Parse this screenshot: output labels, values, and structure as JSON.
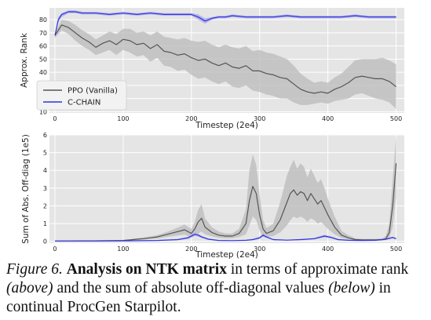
{
  "chart_data": [
    {
      "type": "line",
      "xlabel": "Timestep (2e4)",
      "ylabel": "Approx. Rank",
      "xlim": [
        -8,
        512
      ],
      "ylim": [
        9,
        89
      ],
      "xticks": [
        0,
        100,
        200,
        300,
        400,
        500
      ],
      "yticks": [
        10,
        20,
        30,
        40,
        50,
        60,
        70,
        80
      ],
      "grid": true,
      "legend_position": "lower-left",
      "series": [
        {
          "name": "PPO (Vanilla)",
          "color": "#555555",
          "band_color": "#b9b9b9",
          "x": [
            0,
            5,
            10,
            20,
            30,
            40,
            50,
            60,
            70,
            80,
            90,
            100,
            110,
            120,
            130,
            140,
            150,
            160,
            170,
            180,
            190,
            200,
            210,
            220,
            230,
            240,
            250,
            260,
            270,
            280,
            290,
            300,
            310,
            320,
            330,
            340,
            350,
            360,
            370,
            380,
            390,
            400,
            410,
            420,
            430,
            440,
            450,
            460,
            470,
            480,
            490,
            500
          ],
          "y": [
            68,
            72,
            76,
            74,
            70,
            66,
            63,
            59,
            62,
            64,
            61,
            65,
            64,
            61,
            62,
            58,
            61,
            56,
            55,
            53,
            54,
            51,
            49,
            50,
            47,
            45,
            47,
            44,
            43,
            45,
            41,
            41,
            39,
            38,
            36,
            35,
            31,
            27,
            25,
            24,
            25,
            24,
            27,
            29,
            32,
            36,
            37,
            36,
            35,
            35,
            33,
            29
          ],
          "band_low": [
            66,
            69,
            72,
            69,
            64,
            60,
            57,
            53,
            55,
            57,
            53,
            57,
            55,
            52,
            53,
            48,
            51,
            45,
            44,
            41,
            42,
            38,
            35,
            36,
            33,
            31,
            33,
            29,
            28,
            30,
            26,
            25,
            23,
            22,
            20,
            20,
            17,
            15,
            15,
            16,
            17,
            16,
            18,
            19,
            20,
            23,
            24,
            22,
            20,
            19,
            17,
            12
          ],
          "band_high": [
            70,
            75,
            80,
            79,
            76,
            72,
            69,
            65,
            68,
            71,
            69,
            73,
            73,
            70,
            71,
            68,
            71,
            67,
            66,
            65,
            66,
            64,
            63,
            64,
            61,
            59,
            61,
            59,
            58,
            60,
            56,
            57,
            55,
            54,
            52,
            50,
            45,
            39,
            35,
            32,
            33,
            32,
            36,
            39,
            44,
            49,
            50,
            50,
            50,
            51,
            49,
            46
          ]
        },
        {
          "name": "C-CHAIN",
          "color": "#3333dd",
          "band_color": "#a9a9ee",
          "x": [
            0,
            5,
            10,
            20,
            30,
            40,
            60,
            80,
            100,
            120,
            140,
            160,
            180,
            200,
            210,
            220,
            230,
            240,
            250,
            260,
            280,
            300,
            320,
            340,
            360,
            380,
            400,
            420,
            440,
            460,
            480,
            500
          ],
          "y": [
            68,
            80,
            84,
            86,
            86,
            85,
            85,
            84,
            85,
            84,
            85,
            84,
            84,
            84,
            82,
            79,
            81,
            82,
            82,
            83,
            82,
            82,
            82,
            83,
            82,
            82,
            82,
            82,
            83,
            82,
            82,
            82
          ],
          "band_low": [
            67,
            78,
            82,
            85,
            85,
            84,
            84,
            83,
            84,
            83,
            84,
            83,
            83,
            83,
            80,
            77,
            80,
            81,
            81,
            82,
            81,
            81,
            81,
            82,
            81,
            81,
            81,
            81,
            82,
            81,
            81,
            81
          ],
          "band_high": [
            69,
            82,
            85,
            87,
            87,
            86,
            86,
            85,
            86,
            85,
            86,
            85,
            85,
            85,
            84,
            81,
            82,
            83,
            83,
            84,
            83,
            83,
            83,
            84,
            83,
            83,
            83,
            83,
            84,
            83,
            83,
            83
          ]
        }
      ]
    },
    {
      "type": "line",
      "xlabel": "Timestep (2e4)",
      "ylabel": "Sum of Abs. Off-diag (1e5)",
      "xlim": [
        -8,
        512
      ],
      "ylim": [
        -0.1,
        6.0
      ],
      "xticks": [
        0,
        100,
        200,
        300,
        400,
        500
      ],
      "yticks": [
        0,
        1,
        2,
        3,
        4,
        5,
        6
      ],
      "grid": true,
      "series": [
        {
          "name": "PPO (Vanilla)",
          "color": "#555555",
          "band_color": "#b9b9b9",
          "x": [
            0,
            20,
            40,
            60,
            80,
            100,
            110,
            120,
            130,
            140,
            150,
            160,
            170,
            180,
            190,
            195,
            200,
            205,
            210,
            215,
            220,
            230,
            240,
            250,
            260,
            270,
            280,
            285,
            290,
            295,
            300,
            305,
            310,
            320,
            330,
            340,
            345,
            350,
            355,
            360,
            365,
            370,
            375,
            380,
            385,
            390,
            395,
            400,
            410,
            420,
            430,
            440,
            450,
            460,
            470,
            480,
            485,
            490,
            495,
            500
          ],
          "y": [
            0.02,
            0.02,
            0.03,
            0.03,
            0.04,
            0.05,
            0.08,
            0.12,
            0.15,
            0.2,
            0.25,
            0.35,
            0.45,
            0.55,
            0.65,
            0.55,
            0.45,
            0.7,
            1.1,
            1.3,
            0.8,
            0.5,
            0.35,
            0.3,
            0.3,
            0.45,
            1.0,
            2.3,
            3.1,
            2.7,
            1.5,
            0.7,
            0.45,
            0.6,
            1.2,
            2.2,
            2.7,
            2.9,
            2.6,
            2.8,
            2.7,
            2.3,
            2.7,
            2.4,
            2.1,
            2.3,
            1.9,
            1.5,
            0.8,
            0.35,
            0.2,
            0.1,
            0.08,
            0.08,
            0.08,
            0.1,
            0.15,
            0.5,
            2.0,
            4.4
          ],
          "band_low": [
            0.01,
            0.01,
            0.02,
            0.02,
            0.02,
            0.03,
            0.05,
            0.08,
            0.1,
            0.13,
            0.16,
            0.22,
            0.28,
            0.33,
            0.38,
            0.3,
            0.25,
            0.35,
            0.45,
            0.55,
            0.4,
            0.28,
            0.2,
            0.18,
            0.18,
            0.25,
            0.4,
            0.9,
            1.4,
            1.2,
            0.6,
            0.3,
            0.25,
            0.3,
            0.5,
            0.9,
            1.2,
            1.4,
            1.3,
            1.4,
            1.3,
            1.1,
            1.3,
            1.2,
            1.0,
            1.1,
            0.9,
            0.7,
            0.4,
            0.2,
            0.1,
            0.05,
            0.04,
            0.04,
            0.04,
            0.05,
            0.08,
            0.2,
            0.8,
            2.5
          ],
          "band_high": [
            0.03,
            0.03,
            0.04,
            0.04,
            0.06,
            0.08,
            0.12,
            0.17,
            0.22,
            0.28,
            0.35,
            0.48,
            0.62,
            0.78,
            0.95,
            0.82,
            0.7,
            1.1,
            1.8,
            2.1,
            1.3,
            0.8,
            0.55,
            0.45,
            0.45,
            0.7,
            1.8,
            4.0,
            4.9,
            4.3,
            2.6,
            1.2,
            0.75,
            1.0,
            2.2,
            3.7,
            4.2,
            4.6,
            4.1,
            4.4,
            4.2,
            3.6,
            4.1,
            3.7,
            3.3,
            3.5,
            3.0,
            2.4,
            1.4,
            0.6,
            0.35,
            0.18,
            0.14,
            0.14,
            0.14,
            0.18,
            0.3,
            1.0,
            3.5,
            6.0
          ]
        },
        {
          "name": "C-CHAIN",
          "color": "#3333dd",
          "band_color": "#a9a9ee",
          "x": [
            0,
            50,
            100,
            150,
            180,
            195,
            205,
            210,
            215,
            225,
            240,
            260,
            280,
            290,
            300,
            305,
            310,
            320,
            340,
            360,
            380,
            395,
            405,
            415,
            430,
            450,
            470,
            485,
            495,
            500
          ],
          "y": [
            0.02,
            0.02,
            0.03,
            0.05,
            0.1,
            0.2,
            0.4,
            0.35,
            0.25,
            0.12,
            0.05,
            0.04,
            0.06,
            0.1,
            0.2,
            0.35,
            0.25,
            0.1,
            0.07,
            0.1,
            0.15,
            0.3,
            0.22,
            0.1,
            0.06,
            0.05,
            0.06,
            0.12,
            0.22,
            0.15
          ],
          "band_low": [
            0.01,
            0.01,
            0.02,
            0.03,
            0.07,
            0.14,
            0.3,
            0.27,
            0.19,
            0.09,
            0.04,
            0.03,
            0.04,
            0.07,
            0.14,
            0.26,
            0.19,
            0.07,
            0.05,
            0.07,
            0.11,
            0.23,
            0.17,
            0.07,
            0.04,
            0.04,
            0.04,
            0.09,
            0.17,
            0.11
          ],
          "band_high": [
            0.03,
            0.03,
            0.04,
            0.07,
            0.13,
            0.26,
            0.5,
            0.43,
            0.31,
            0.15,
            0.07,
            0.06,
            0.08,
            0.13,
            0.26,
            0.44,
            0.31,
            0.13,
            0.09,
            0.13,
            0.19,
            0.37,
            0.28,
            0.13,
            0.08,
            0.07,
            0.08,
            0.15,
            0.27,
            0.19
          ]
        }
      ]
    }
  ],
  "caption": {
    "label": "Figure 6.",
    "title": "Analysis on NTK matrix",
    "text1": " in terms of approximate rank ",
    "above": "(above)",
    "text2": " and the sum of absolute off-diagonal values ",
    "below": "(below)",
    "text3": " in continual ProcGen Starpilot."
  }
}
